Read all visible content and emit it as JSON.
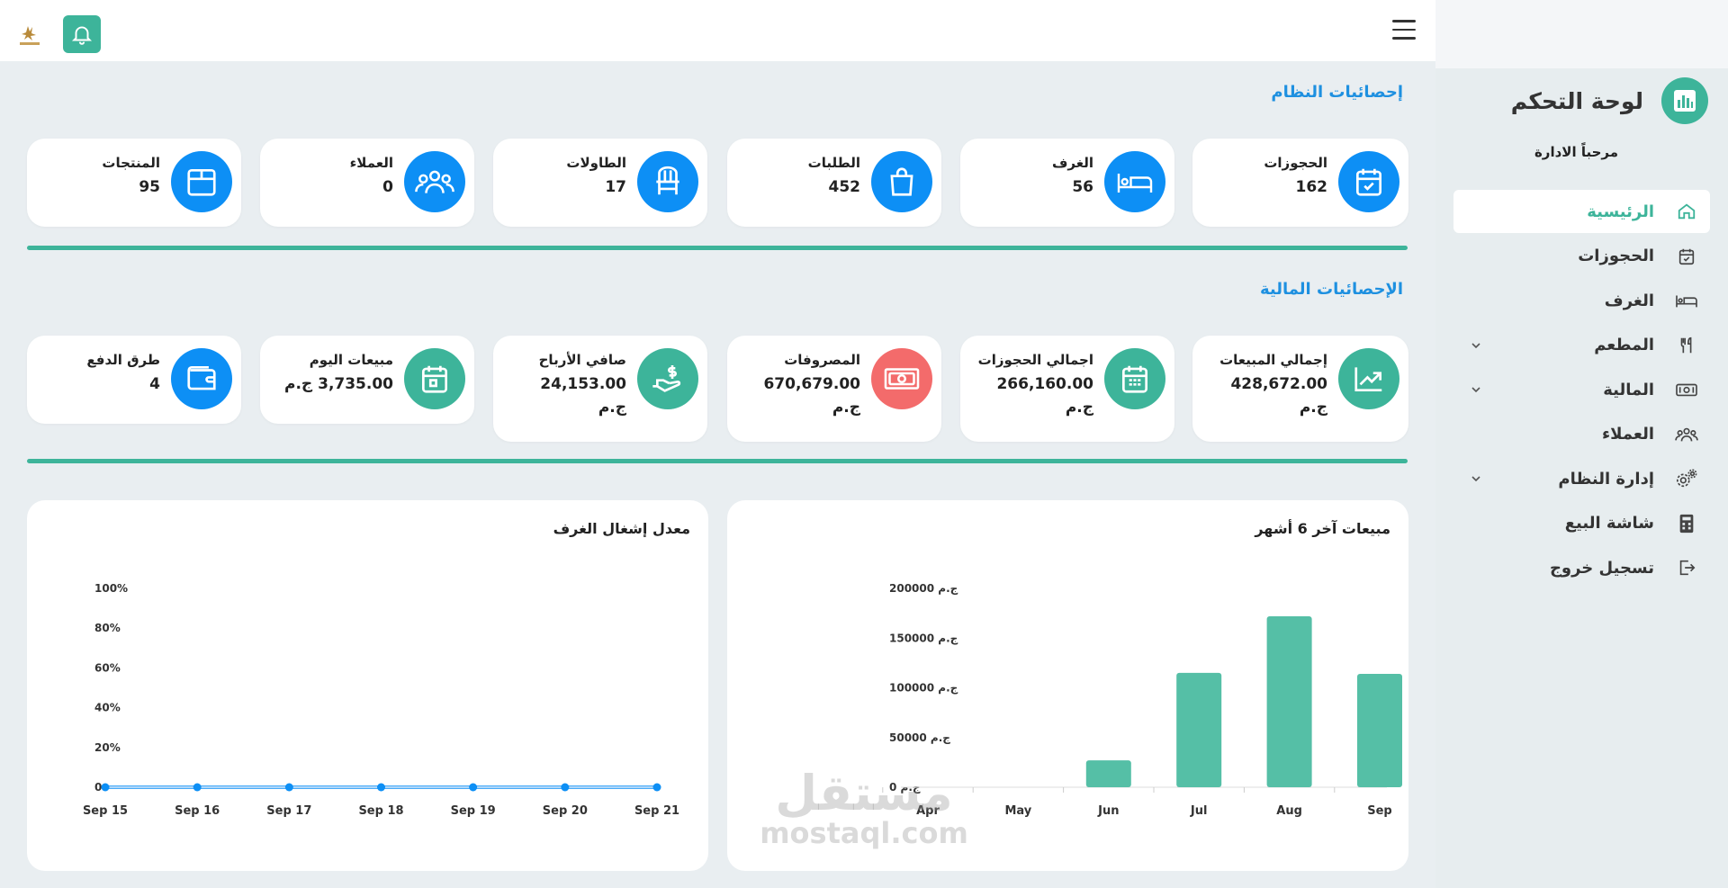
{
  "app": {
    "title": "لوحة التحكم",
    "welcome": "مرحباً الادارة",
    "accent_color": "#3db49a",
    "blue_color": "#0d8ff5",
    "red_color": "#f36b6b"
  },
  "sidebar": {
    "items": [
      {
        "label": "الرئيسية",
        "icon": "home-icon",
        "active": true
      },
      {
        "label": "الحجوزات",
        "icon": "calendar-check-icon"
      },
      {
        "label": "الغرف",
        "icon": "bed-icon"
      },
      {
        "label": "المطعم",
        "icon": "utensils-icon",
        "has_submenu": true
      },
      {
        "label": "المالية",
        "icon": "money-icon",
        "has_submenu": true
      },
      {
        "label": "العملاء",
        "icon": "users-icon"
      },
      {
        "label": "إدارة النظام",
        "icon": "gears-icon",
        "has_submenu": true
      },
      {
        "label": "شاشة البيع",
        "icon": "calculator-icon"
      },
      {
        "label": "تسجيل خروج",
        "icon": "logout-icon"
      }
    ]
  },
  "system_stats": {
    "title": "إحصائيات النظام",
    "cards": [
      {
        "label": "الحجوزات",
        "value": "162",
        "icon": "calendar-check-icon"
      },
      {
        "label": "الغرف",
        "value": "56",
        "icon": "bed-icon"
      },
      {
        "label": "الطلبات",
        "value": "452",
        "icon": "shopping-bag-icon"
      },
      {
        "label": "الطاولات",
        "value": "17",
        "icon": "chair-icon"
      },
      {
        "label": "العملاء",
        "value": "0",
        "icon": "users-icon"
      },
      {
        "label": "المنتجات",
        "value": "95",
        "icon": "box-icon"
      }
    ]
  },
  "financial_stats": {
    "title": "الإحصائيات المالية",
    "cards": [
      {
        "label": "إجمالي المبيعات",
        "value": "428,672.00",
        "currency": "ج.م",
        "icon": "trend-up-icon"
      },
      {
        "label": "اجمالي الحجوزات",
        "value": "266,160.00",
        "currency": "ج.م",
        "icon": "calendar-grid-icon"
      },
      {
        "label": "المصروفات",
        "value": "670,679.00",
        "currency": "ج.م",
        "icon": "banknote-icon"
      },
      {
        "label": "صافي الأرباح",
        "value": "24,153.00",
        "currency": "ج.م",
        "icon": "hand-dollar-icon"
      },
      {
        "label": "مبيعات اليوم",
        "value": "3,735.00 ج.م",
        "currency": "",
        "icon": "calendar-day-icon"
      },
      {
        "label": "طرق الدفع",
        "value": "4",
        "currency": "",
        "icon": "wallet-icon"
      }
    ]
  },
  "chart_data": [
    {
      "type": "bar",
      "title": "مبيعات آخر 6 أشهر",
      "categories": [
        "Apr",
        "May",
        "Jun",
        "Jul",
        "Aug",
        "Sep"
      ],
      "values": [
        0,
        0,
        27000,
        115000,
        172000,
        114000
      ],
      "yticks": [
        "ج.م 200000",
        "ج.م 150000",
        "ج.م 100000",
        "ج.م 50000",
        "ج.م 0"
      ],
      "ylim": [
        0,
        200000
      ]
    },
    {
      "type": "line",
      "title": "معدل إشغال الغرف",
      "categories": [
        "Sep 15",
        "Sep 16",
        "Sep 17",
        "Sep 18",
        "Sep 19",
        "Sep 20",
        "Sep 21"
      ],
      "values": [
        0,
        0,
        0,
        0,
        0,
        0,
        0
      ],
      "yticks": [
        "100%",
        "80%",
        "60%",
        "40%",
        "20%",
        "0"
      ],
      "ylim": [
        0,
        100
      ]
    }
  ],
  "watermark": {
    "arabic": "مستقل",
    "latin": "mostaql.com"
  }
}
